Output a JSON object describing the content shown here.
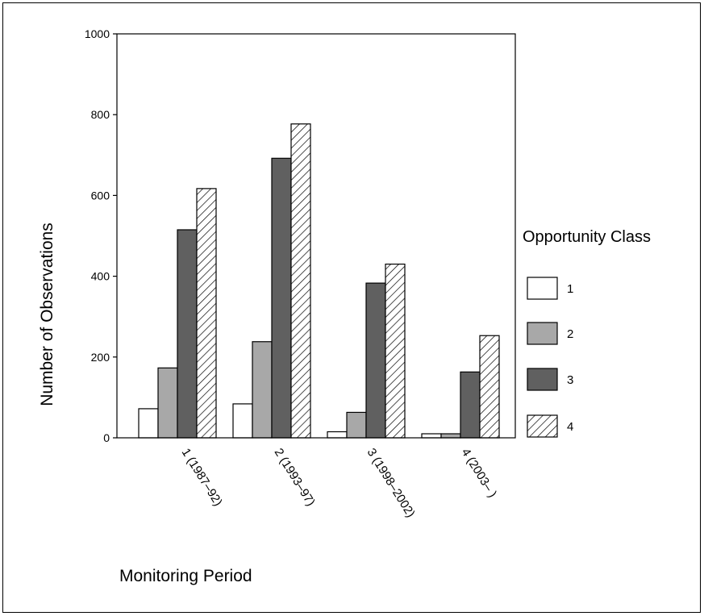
{
  "chart_data": {
    "type": "bar",
    "title": "",
    "xlabel": "Monitoring Period",
    "ylabel": "Number of Observations",
    "categories": [
      "1 (1987–92)",
      "2 (1993–97)",
      "3 (1998–2002)",
      "4 (2003–    )"
    ],
    "series": [
      {
        "name": "1",
        "values": [
          72,
          84,
          15,
          10
        ]
      },
      {
        "name": "2",
        "values": [
          173,
          238,
          63,
          10
        ]
      },
      {
        "name": "3",
        "values": [
          515,
          692,
          383,
          163
        ]
      },
      {
        "name": "4",
        "values": [
          617,
          777,
          430,
          253
        ]
      }
    ],
    "ylim": [
      0,
      1000
    ],
    "yticks": [
      "0",
      "200",
      "400",
      "600",
      "800",
      "1000"
    ],
    "legend": {
      "title": "Opportunity Class",
      "placement": "right"
    },
    "grid": false,
    "series_styles": [
      {
        "fill": "#ffffff",
        "pattern": "none"
      },
      {
        "fill": "#a8a8a8",
        "pattern": "none"
      },
      {
        "fill": "#606060",
        "pattern": "none"
      },
      {
        "fill": "#ffffff",
        "pattern": "diagonal-hatch"
      }
    ]
  }
}
